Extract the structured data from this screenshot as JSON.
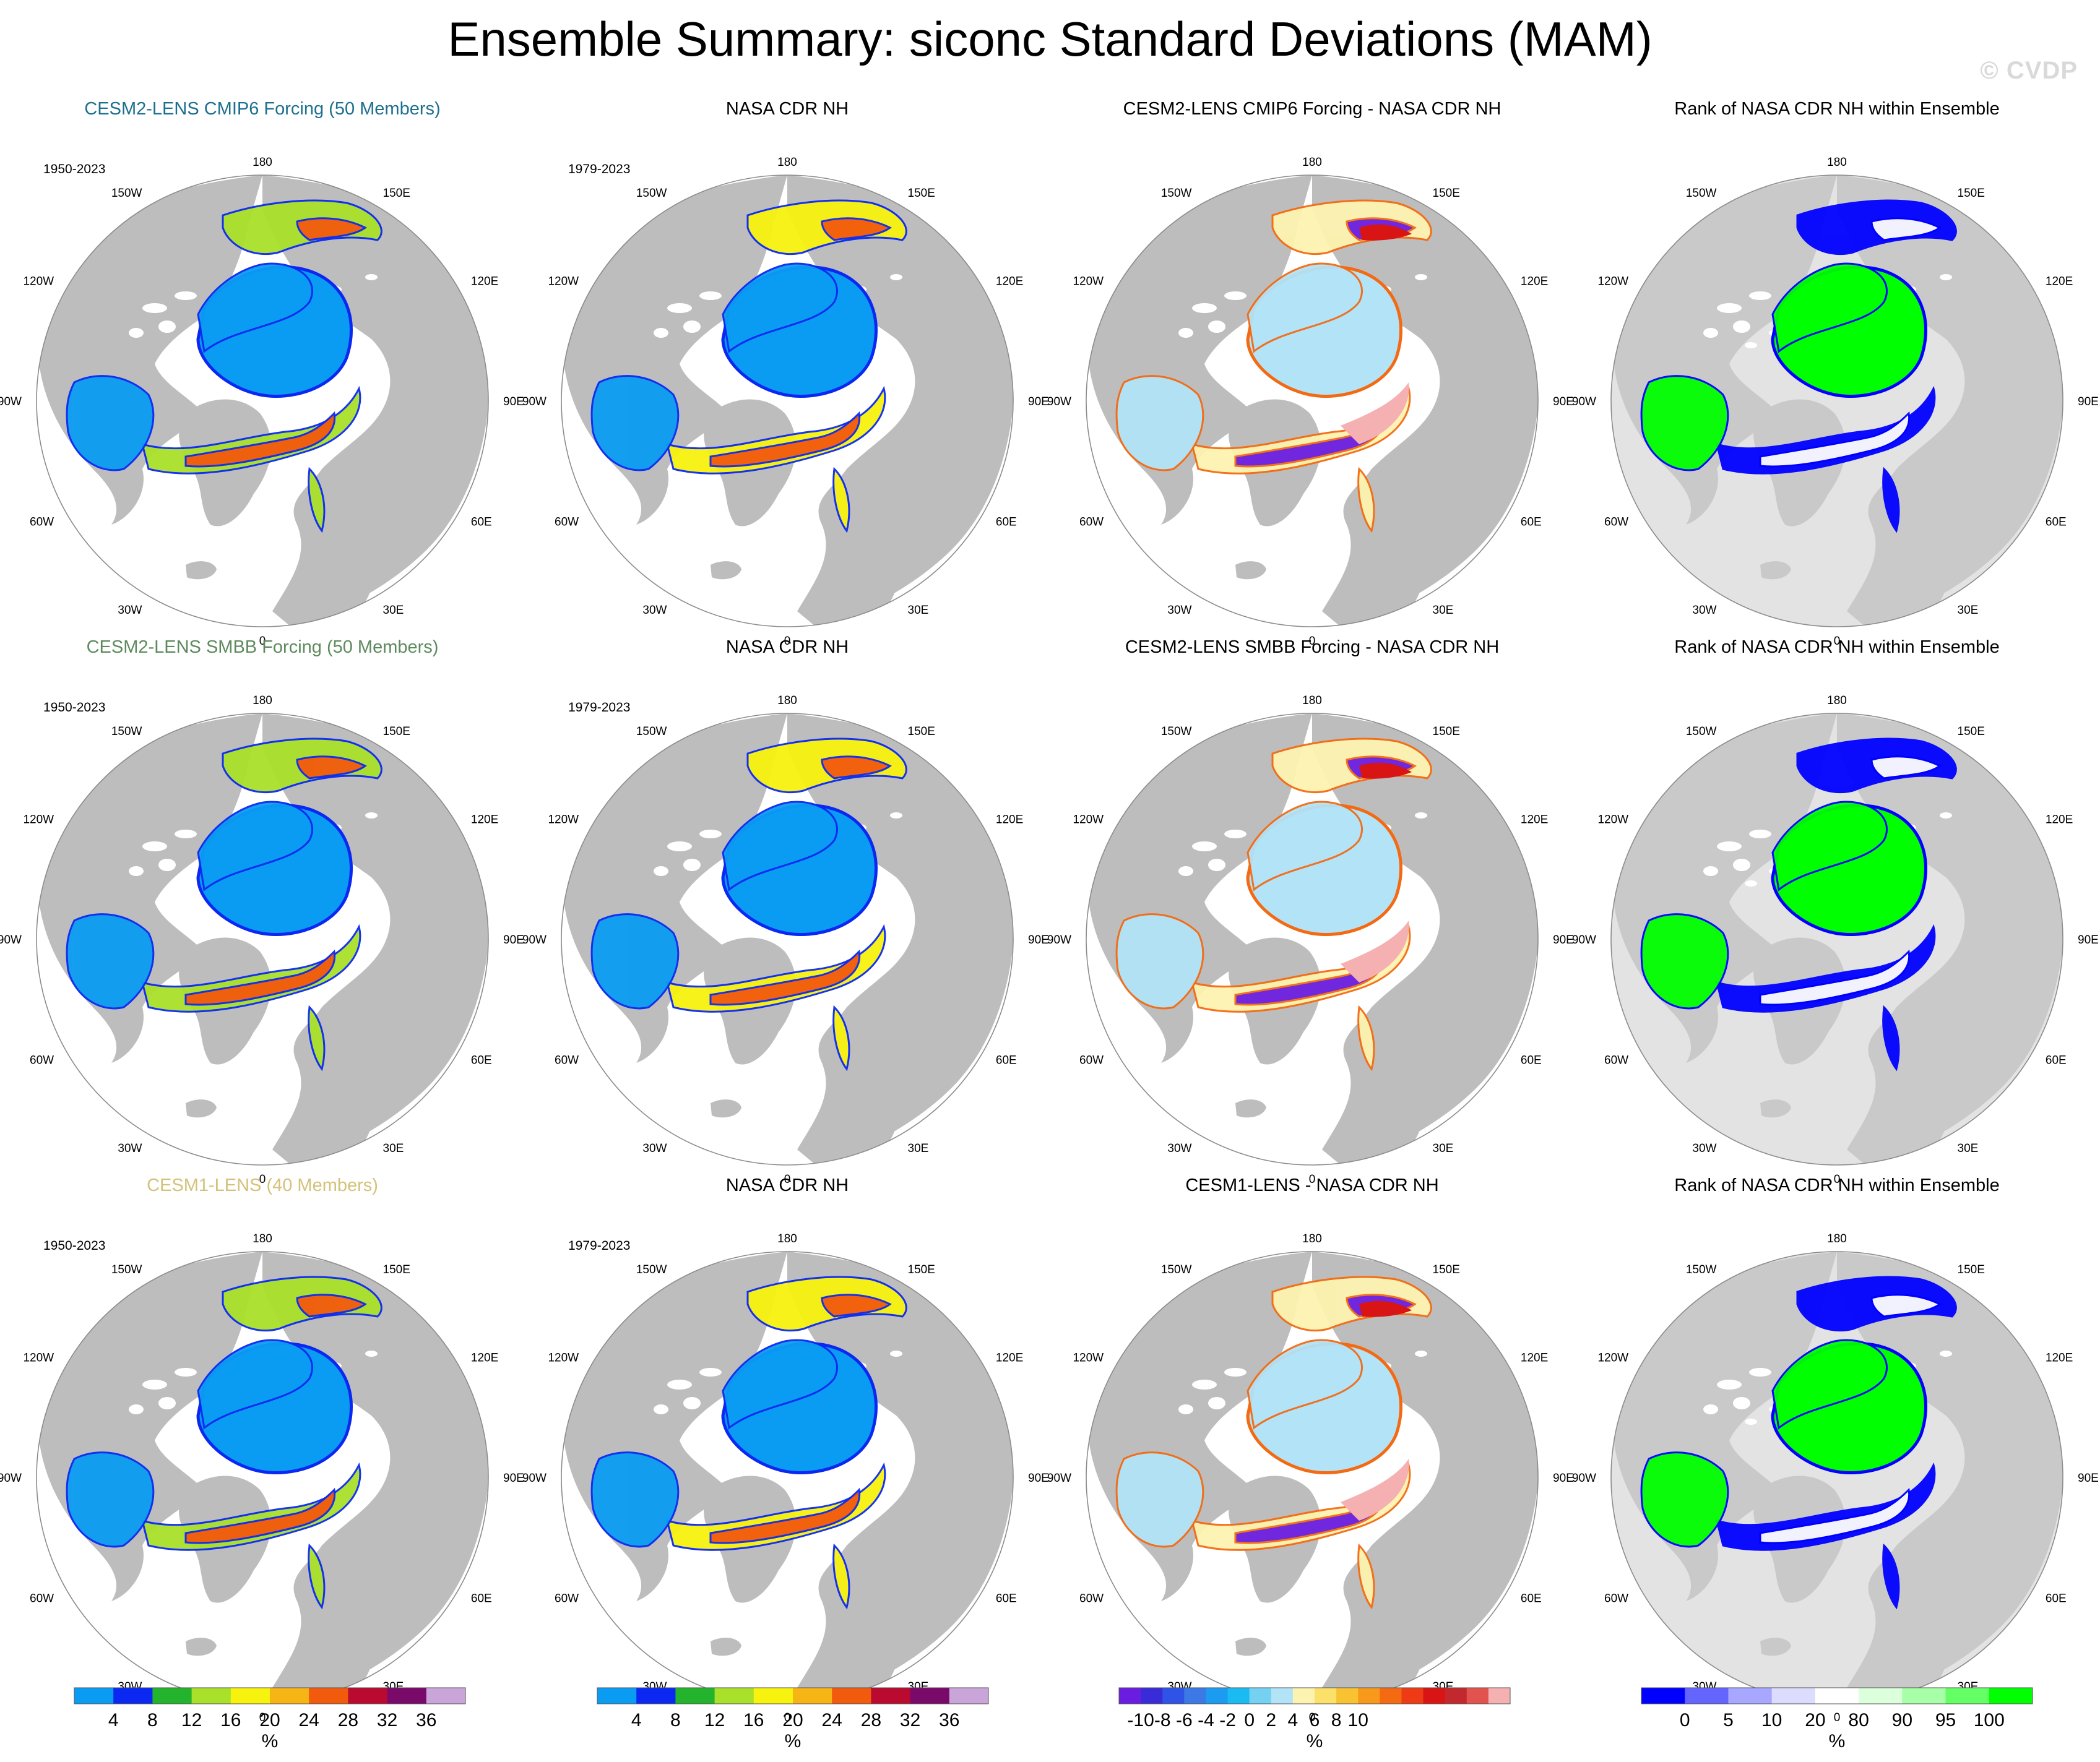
{
  "title": "Ensemble Summary: siconc Standard Deviations (MAM)",
  "watermark": "© CVDP",
  "lon_labels": {
    "n180": "180",
    "w150": "150W",
    "e150": "150E",
    "w120": "120W",
    "e120": "120E",
    "w90": "90W",
    "e90": "90E",
    "w60": "60W",
    "e60": "60E",
    "w30": "30W",
    "e30": "30E",
    "zero": "0"
  },
  "colors": {
    "land": "#bdbdbd",
    "rank_land": "#c9c9c9",
    "rank_ocean_bg": "#e3e3e3"
  },
  "rows": [
    {
      "ensemble": {
        "title": "CESM2-LENS CMIP6 Forcing (50 Members)",
        "title_color": "#1d6f8f",
        "period": "1950-2023"
      },
      "obs": {
        "title": "NASA CDR NH",
        "period": "1979-2023"
      },
      "diff": {
        "title": "CESM2-LENS CMIP6 Forcing - NASA CDR NH"
      },
      "rank": {
        "title": "Rank of NASA CDR NH within Ensemble"
      }
    },
    {
      "ensemble": {
        "title": "CESM2-LENS SMBB Forcing (50 Members)",
        "title_color": "#5d8a5d",
        "period": "1950-2023"
      },
      "obs": {
        "title": "NASA CDR NH",
        "period": "1979-2023"
      },
      "diff": {
        "title": "CESM2-LENS SMBB Forcing - NASA CDR NH"
      },
      "rank": {
        "title": "Rank of NASA CDR NH within Ensemble"
      }
    },
    {
      "ensemble": {
        "title": "CESM1-LENS (40 Members)",
        "title_color": "#d4c27a",
        "period": "1950-2023"
      },
      "obs": {
        "title": "NASA CDR NH",
        "period": "1979-2023"
      },
      "diff": {
        "title": "CESM1-LENS - NASA CDR NH"
      },
      "rank": {
        "title": "Rank of NASA CDR NH within Ensemble"
      }
    }
  ],
  "colorbars": {
    "stddev": {
      "unit": "%",
      "colors": [
        "#0a9cf2",
        "#0a28f2",
        "#24b32c",
        "#a9e02a",
        "#f7f20e",
        "#f7b515",
        "#f25a0d",
        "#ba0a2f",
        "#7a0a6a",
        "#c9a5d9"
      ],
      "ticks": [
        "4",
        "8",
        "12",
        "16",
        "20",
        "24",
        "28",
        "32",
        "36"
      ]
    },
    "diff": {
      "unit": "%",
      "colors": [
        "#6a1de0",
        "#3a2bd9",
        "#2f53e6",
        "#3c78e6",
        "#1b9cf0",
        "#19bbf2",
        "#74d1f2",
        "#b3e3f7",
        "#fdf3b0",
        "#fbe06a",
        "#f9c232",
        "#f79a1c",
        "#f46a12",
        "#ef3b15",
        "#d81414",
        "#c2282d",
        "#e2534f",
        "#f5b1b1"
      ],
      "ticks": [
        "-10",
        "-8",
        "-6",
        "-4",
        "-2",
        "0",
        "2",
        "4",
        "6",
        "8",
        "10"
      ]
    },
    "rank": {
      "unit": "%",
      "colors": [
        "#0000ff",
        "#6464ff",
        "#a7a7ff",
        "#dcdcff",
        "#ffffff",
        "#dcffdc",
        "#a7ffa7",
        "#64ff64",
        "#00ff00"
      ],
      "ticks": [
        "0",
        "5",
        "10",
        "20",
        "80",
        "90",
        "95",
        "100"
      ]
    }
  }
}
